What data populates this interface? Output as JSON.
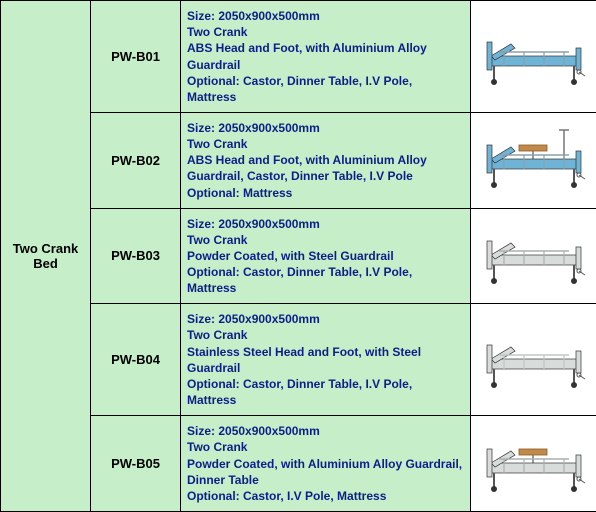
{
  "category_label": "Two Crank Bed",
  "row_bg": "#c5eec9",
  "desc_color": "#0b1f8a",
  "rows": [
    {
      "model": "PW-B01",
      "desc": "Size: 2050x900x500mm\nTwo Crank\nABS Head and Foot, with Aluminium Alloy Guardrail\nOptional: Castor, Dinner Table, I.V Pole, Mattress",
      "bed_color": "#6fb3d6",
      "rail_color": "#8aa0a8",
      "has_pole": false,
      "has_table": false
    },
    {
      "model": "PW-B02",
      "desc": "Size: 2050x900x500mm\nTwo Crank\nABS Head and Foot, with Aluminium Alloy Guardrail, Castor, Dinner Table, I.V Pole\nOptional: Mattress",
      "bed_color": "#6fb3d6",
      "rail_color": "#8aa0a8",
      "has_pole": true,
      "has_table": true
    },
    {
      "model": "PW-B03",
      "desc": "Size: 2050x900x500mm\nTwo Crank\nPowder Coated, with Steel Guardrail\nOptional: Castor, Dinner Table, I.V Pole, Mattress",
      "bed_color": "#d8dcdb",
      "rail_color": "#a9b0b0",
      "has_pole": false,
      "has_table": false
    },
    {
      "model": "PW-B04",
      "desc": "Size: 2050x900x500mm\nTwo Crank\nStainless Steel Head and Foot, with Steel Guardrail\nOptional: Castor, Dinner Table, I.V Pole, Mattress",
      "bed_color": "#d8dcdb",
      "rail_color": "#bfc5c5",
      "has_pole": false,
      "has_table": false
    },
    {
      "model": "PW-B05",
      "desc": "Size: 2050x900x500mm\nTwo Crank\nPowder Coated, with Aluminium Alloy Guardrail, Dinner Table\nOptional: Castor, I.V Pole, Mattress",
      "bed_color": "#d8dcdb",
      "rail_color": "#a9b0b0",
      "has_pole": false,
      "has_table": true
    }
  ]
}
